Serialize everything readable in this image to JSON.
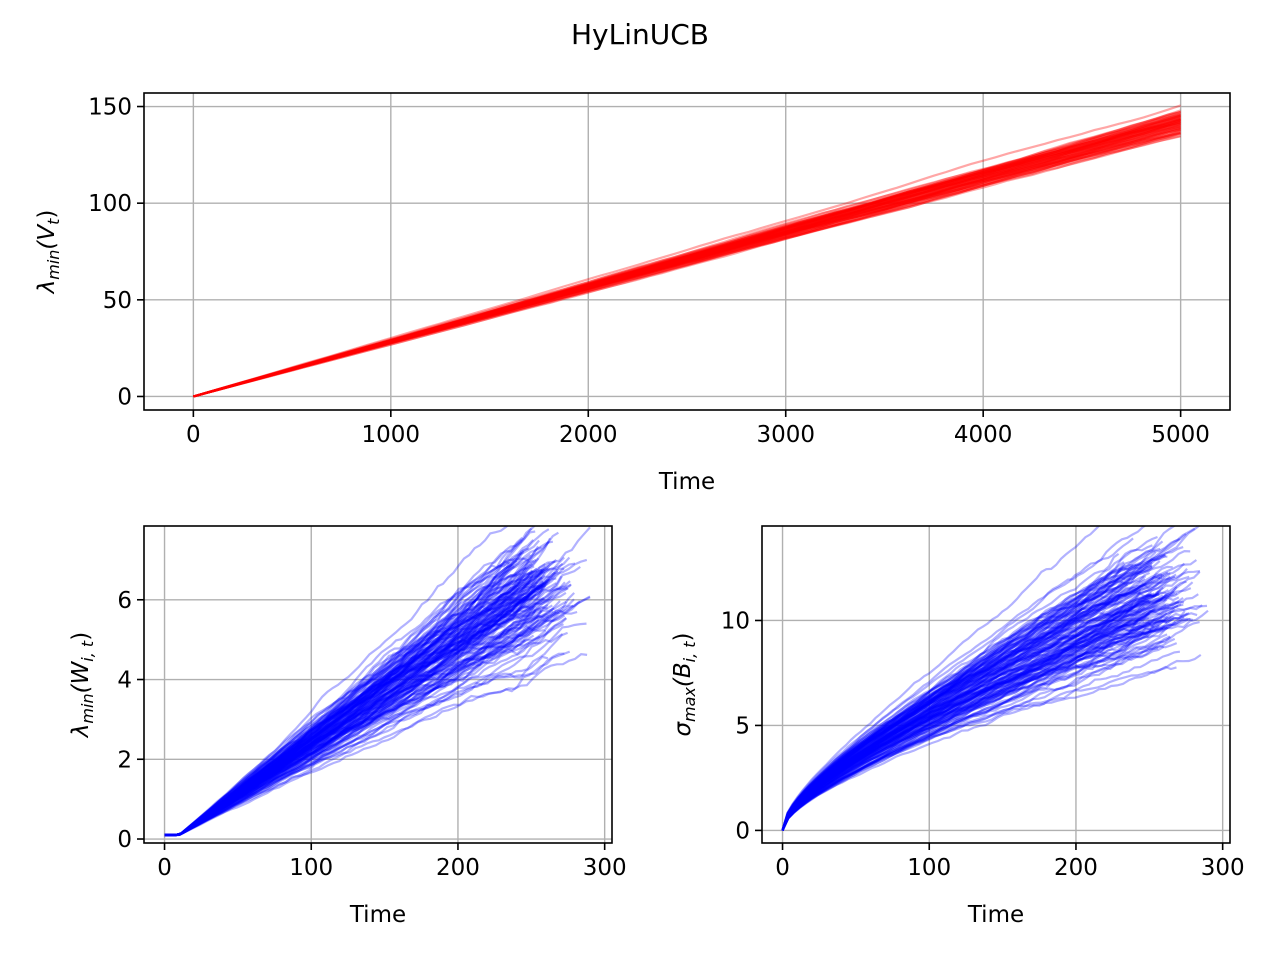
{
  "figure": {
    "title": "HyLinUCB"
  },
  "chart_data": [
    {
      "id": "top",
      "type": "line",
      "xlabel": "Time",
      "ylabel": "λmin(Vt)",
      "ylabel_parts": {
        "main": "λ",
        "sub": "min",
        "arg": "(V",
        "argsub": "t",
        "close": ")"
      },
      "xlim": [
        -250,
        5250
      ],
      "ylim": [
        -7,
        157
      ],
      "xticks": [
        0,
        1000,
        2000,
        3000,
        4000,
        5000
      ],
      "yticks": [
        0,
        50,
        100,
        150
      ],
      "grid": true,
      "color": "#ff0000",
      "series_count": 60,
      "series_summary": {
        "x_start": 0,
        "x_end": 5000,
        "y_start": 0,
        "y_end_min": 134,
        "y_end_max": 149
      }
    },
    {
      "id": "bottom-left",
      "type": "line",
      "xlabel": "Time",
      "ylabel": "λmin(Wi,t)",
      "ylabel_parts": {
        "main": "λ",
        "sub": "min",
        "arg": "(W",
        "argsub": "i, t",
        "close": ")"
      },
      "xlim": [
        -14,
        305
      ],
      "ylim": [
        -0.1,
        7.85
      ],
      "xticks": [
        0,
        100,
        200,
        300
      ],
      "yticks": [
        0,
        2,
        4,
        6
      ],
      "grid": true,
      "color": "#0000ff",
      "series_count": 140,
      "series_summary": {
        "x_start": 0,
        "flat_until": 10,
        "flat_value": 0.1,
        "x_end_min": 225,
        "x_end_max": 290,
        "y_end_min": 5.2,
        "y_end_max": 7.6
      }
    },
    {
      "id": "bottom-right",
      "type": "line",
      "xlabel": "Time",
      "ylabel": "σmax(Bi,t)",
      "ylabel_parts": {
        "main": "σ",
        "sub": "max",
        "arg": "(B",
        "argsub": "i, t",
        "close": ")"
      },
      "xlim": [
        -14,
        305
      ],
      "ylim": [
        -0.6,
        14.5
      ],
      "xticks": [
        0,
        100,
        200,
        300
      ],
      "yticks": [
        0,
        5,
        10
      ],
      "grid": true,
      "color": "#0000ff",
      "series_count": 140,
      "series_summary": {
        "x_start": 0,
        "y_start": 0,
        "x_end_min": 225,
        "x_end_max": 290,
        "y_end_min": 9.5,
        "y_end_max": 13.8
      }
    }
  ]
}
